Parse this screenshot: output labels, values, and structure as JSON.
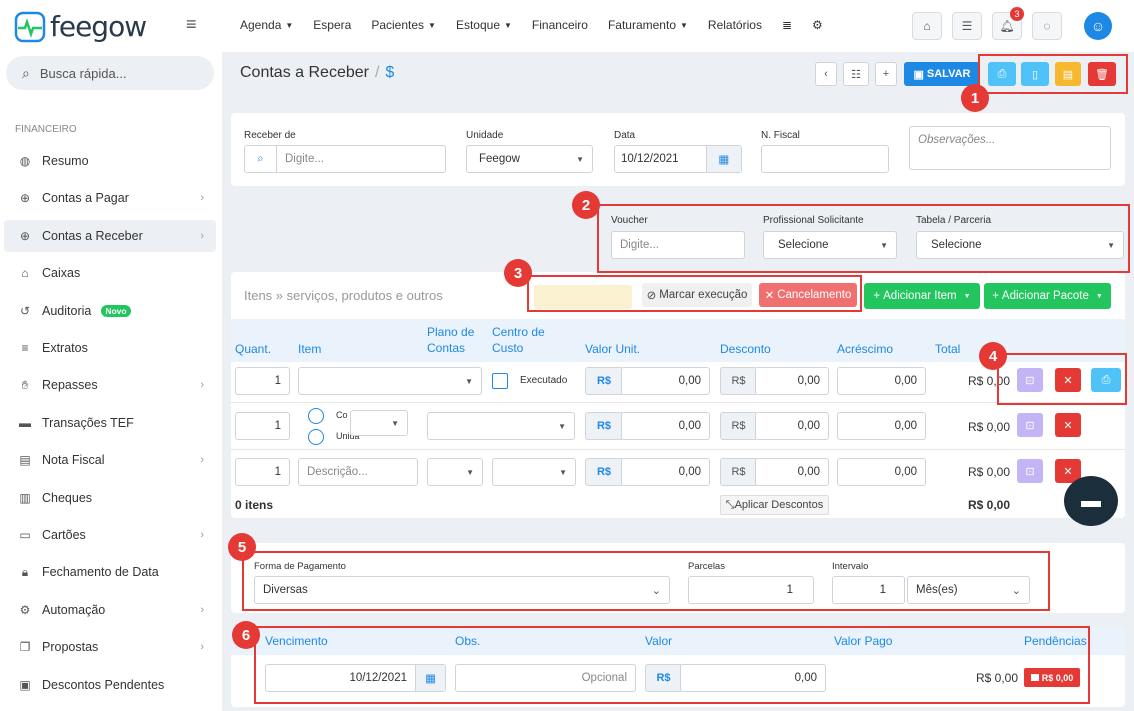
{
  "app": {
    "logo_text": "feegow"
  },
  "nav": {
    "items": [
      {
        "label": "Agenda",
        "caret": true
      },
      {
        "label": "Espera",
        "caret": false
      },
      {
        "label": "Pacientes",
        "caret": true
      },
      {
        "label": "Estoque",
        "caret": true
      },
      {
        "label": "Financeiro",
        "caret": false
      },
      {
        "label": "Faturamento",
        "caret": true
      },
      {
        "label": "Relatórios",
        "caret": false
      }
    ],
    "notif_count": "3"
  },
  "search": {
    "placeholder": "Busca rápida..."
  },
  "sidebar": {
    "section": "FINANCEIRO",
    "novo_badge": "Novo",
    "items": [
      {
        "label": "Resumo",
        "icon": "palette-icon"
      },
      {
        "label": "Contas a Pagar",
        "icon": "arrow-up-circle-icon",
        "chev": true
      },
      {
        "label": "Contas a Receber",
        "icon": "arrow-down-circle-icon",
        "chev": true,
        "active": true
      },
      {
        "label": "Caixas",
        "icon": "inbox-icon"
      },
      {
        "label": "Auditoria",
        "icon": "history-icon",
        "badge": true
      },
      {
        "label": "Extratos",
        "icon": "list-icon"
      },
      {
        "label": "Repasses",
        "icon": "handshake-icon",
        "chev": true
      },
      {
        "label": "Transações TEF",
        "icon": "card-icon"
      },
      {
        "label": "Nota Fiscal",
        "icon": "document-icon",
        "chev": true
      },
      {
        "label": "Cheques",
        "icon": "cheque-icon"
      },
      {
        "label": "Cartões",
        "icon": "credit-card-icon",
        "chev": true
      },
      {
        "label": "Fechamento de Data",
        "icon": "lock-icon"
      },
      {
        "label": "Automação",
        "icon": "gears-icon",
        "chev": true
      },
      {
        "label": "Propostas",
        "icon": "copy-icon",
        "chev": true
      },
      {
        "label": "Descontos Pendentes",
        "icon": "ticket-icon"
      }
    ]
  },
  "page": {
    "title": "Contas a Receber",
    "title_suffix": "$",
    "save_label": "SALVAR"
  },
  "form": {
    "receber_de": {
      "label": "Receber de",
      "placeholder": "Digite..."
    },
    "unidade": {
      "label": "Unidade",
      "value": "Feegow"
    },
    "data": {
      "label": "Data",
      "value": "10/12/2021"
    },
    "nfiscal": {
      "label": "N. Fiscal",
      "value": ""
    },
    "obs": {
      "placeholder": "Observações..."
    },
    "voucher": {
      "label": "Voucher",
      "placeholder": "Digite..."
    },
    "profissional": {
      "label": "Profissional Solicitante",
      "value": "Selecione"
    },
    "tabela": {
      "label": "Tabela / Parceria",
      "value": "Selecione"
    }
  },
  "items": {
    "title": "Itens » serviços, produtos e outros",
    "marcar": "Marcar execução",
    "cancelamento": "Cancelamento",
    "add_item": "Adicionar Item",
    "add_pacote": "Adicionar Pacote",
    "headers": {
      "quant": "Quant.",
      "item": "Item",
      "plano": "Plano de Contas",
      "centro": "Centro de Custo",
      "valor": "Valor Unit.",
      "desconto": "Desconto",
      "acrescimo": "Acréscimo",
      "total": "Total"
    },
    "rows": [
      {
        "quant": "1",
        "executado": "Executado",
        "valor": "0,00",
        "desconto": "0,00",
        "acrescimo": "0,00",
        "total": "R$ 0,00"
      },
      {
        "quant": "1",
        "opt1": "Co",
        "opt2": "Unida",
        "valor": "0,00",
        "desconto": "0,00",
        "acrescimo": "0,00",
        "total": "R$ 0,00"
      },
      {
        "quant": "1",
        "placeholder": "Descrição...",
        "valor": "0,00",
        "desconto": "0,00",
        "acrescimo": "0,00",
        "total": "R$ 0,00"
      }
    ],
    "currency": "R$",
    "count": "0 itens",
    "aplicar": "Aplicar Descontos",
    "grand_total": "R$ 0,00"
  },
  "payment": {
    "forma_label": "Forma de Pagamento",
    "forma_value": "Diversas",
    "parcelas_label": "Parcelas",
    "parcelas_value": "1",
    "intervalo_label": "Intervalo",
    "intervalo_value": "1",
    "intervalo_unit": "Mês(es)"
  },
  "installments": {
    "headers": {
      "venc": "Vencimento",
      "obs": "Obs.",
      "valor": "Valor",
      "pago": "Valor Pago",
      "pend": "Pendências"
    },
    "row": {
      "venc": "10/12/2021",
      "obs_ph": "Opcional",
      "valor": "0,00",
      "pago": "R$ 0,00",
      "pend": "R$ 0,00"
    }
  },
  "callouts": [
    "1",
    "2",
    "3",
    "4",
    "5",
    "6"
  ],
  "colors": {
    "primary": "#1e88e5",
    "danger": "#e53935",
    "success": "#22c55e",
    "cyan": "#4fc3f7",
    "orange": "#f5b82e",
    "lavender": "#c3b5f5"
  }
}
